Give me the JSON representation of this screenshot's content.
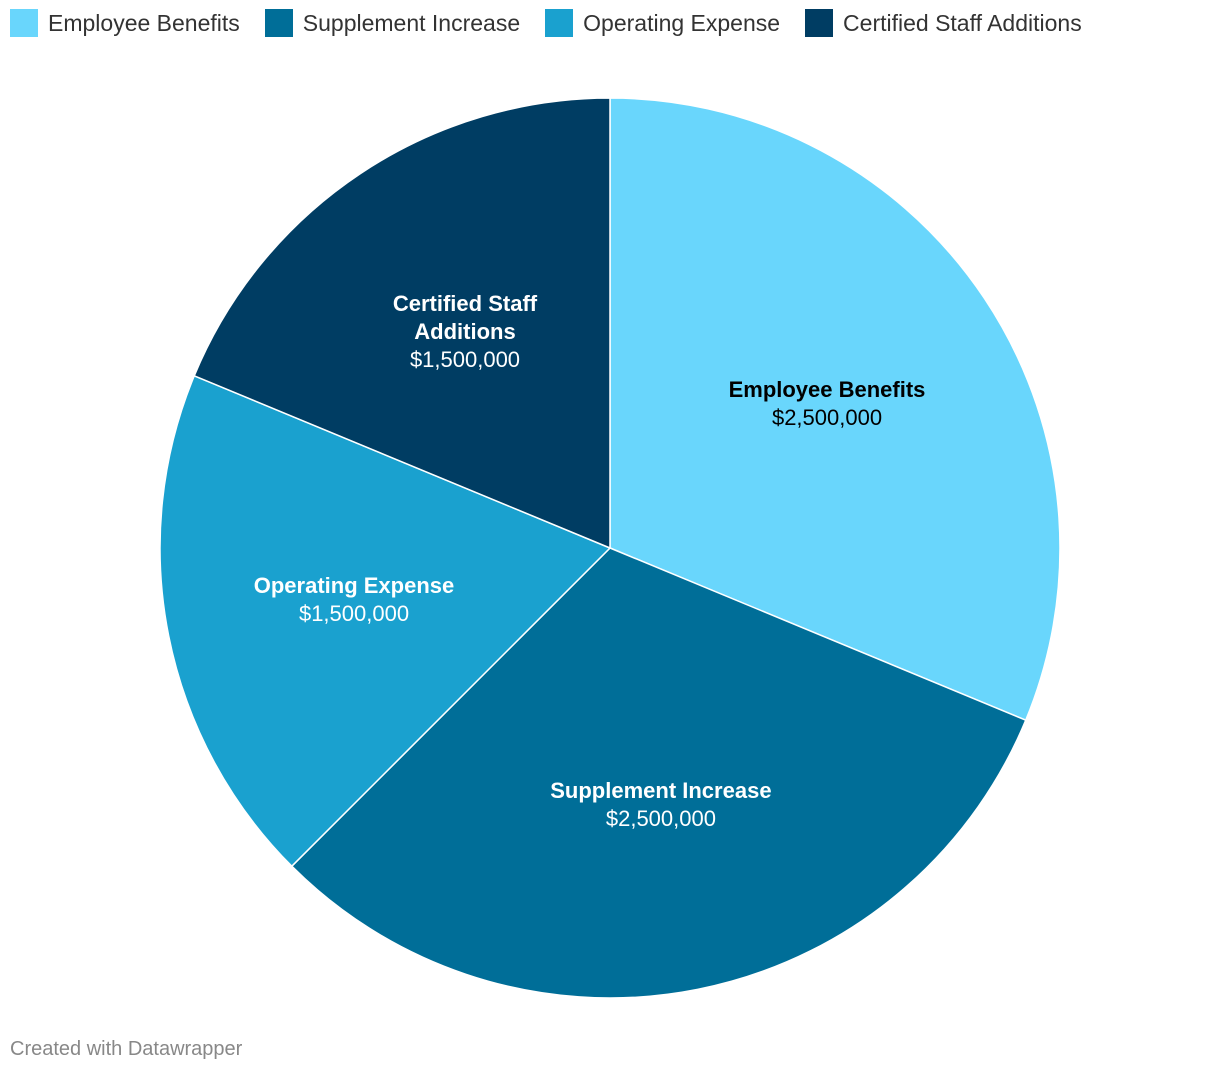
{
  "chart_data": {
    "type": "pie",
    "title": "",
    "currency_prefix": "$",
    "legend_position": "top-left",
    "slices": [
      {
        "name": "Employee Benefits",
        "label_lines": [
          "Employee Benefits"
        ],
        "value": 2500000,
        "display_value": "$2,500,000",
        "color": "#69d6fc",
        "label_color": "#000000"
      },
      {
        "name": "Supplement Increase",
        "label_lines": [
          "Supplement Increase"
        ],
        "value": 2500000,
        "display_value": "$2,500,000",
        "color": "#006e98",
        "label_color": "#ffffff"
      },
      {
        "name": "Operating Expense",
        "label_lines": [
          "Operating Expense"
        ],
        "value": 1500000,
        "display_value": "$1,500,000",
        "color": "#1aa1cf",
        "label_color": "#ffffff"
      },
      {
        "name": "Certified Staff Additions",
        "label_lines": [
          "Certified Staff",
          "Additions"
        ],
        "value": 1500000,
        "display_value": "$1,500,000",
        "color": "#003d63",
        "label_color": "#ffffff"
      }
    ]
  },
  "legend": {
    "items": [
      {
        "label": "Employee Benefits",
        "color": "#69d6fc"
      },
      {
        "label": "Supplement Increase",
        "color": "#006e98"
      },
      {
        "label": "Operating Expense",
        "color": "#1aa1cf"
      },
      {
        "label": "Certified Staff Additions",
        "color": "#003d63"
      }
    ]
  },
  "footer": {
    "credit": "Created with Datawrapper"
  }
}
